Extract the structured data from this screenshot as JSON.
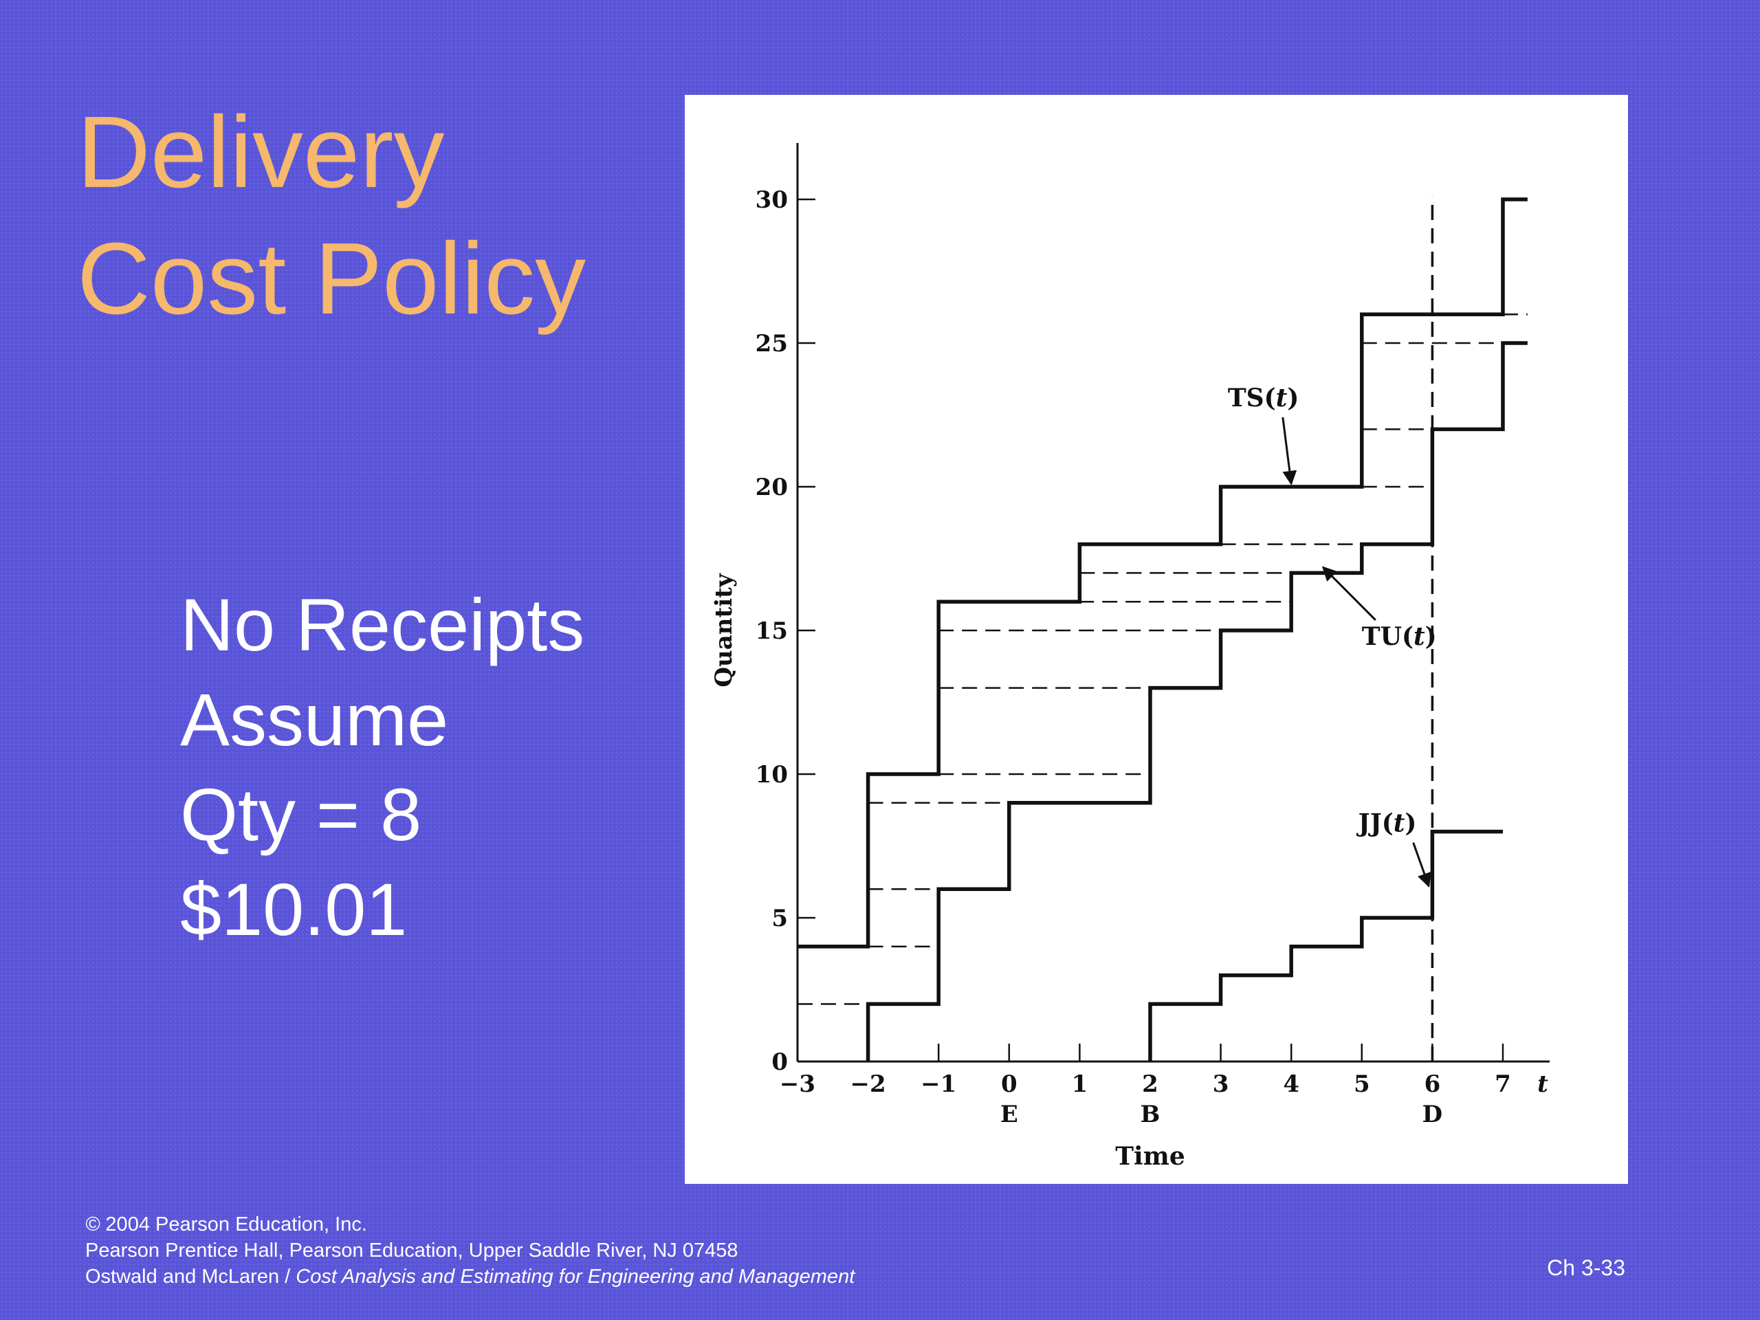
{
  "slide": {
    "title_lines": [
      "Delivery",
      "Cost Policy"
    ],
    "body_lines": [
      "No Receipts",
      "Assume",
      "Qty = 8",
      "$10.01"
    ],
    "footer": {
      "copyright_symbol": "©",
      "copyright": " 2004 Pearson Education, Inc.",
      "publisher": "Pearson Prentice Hall, Pearson Education, Upper Saddle River, NJ 07458",
      "authors": "Ostwald and McLaren / ",
      "book_title": "Cost Analysis and Estimating for Engineering and Management"
    },
    "slide_number": "Ch 3-33"
  },
  "chart_data": {
    "type": "line",
    "xlabel": "Time",
    "ylabel": "Quantity",
    "x_axis_end_label": "t",
    "xlim": [
      -3,
      7
    ],
    "ylim": [
      0,
      30
    ],
    "x_ticks": [
      -3,
      -2,
      -1,
      0,
      1,
      2,
      3,
      4,
      5,
      6,
      7
    ],
    "x_tick_labels": [
      "−3",
      "−2",
      "−1",
      "0",
      "1",
      "2",
      "3",
      "4",
      "5",
      "6",
      "7"
    ],
    "x_event_labels": [
      {
        "x": 0,
        "label": "E"
      },
      {
        "x": 2,
        "label": "B"
      },
      {
        "x": 6,
        "label": "D"
      }
    ],
    "y_ticks": [
      0,
      5,
      10,
      15,
      20,
      25,
      30
    ],
    "y_tick_labels": [
      "0",
      "5",
      "10",
      "15",
      "20",
      "25",
      "30"
    ],
    "series": [
      {
        "name": "TS(t)",
        "kind": "step",
        "x": [
          -3,
          -2,
          -1,
          1,
          3,
          5,
          7,
          7.35
        ],
        "y": [
          4,
          10,
          16,
          18,
          20,
          26,
          30,
          30
        ]
      },
      {
        "name": "TU(t)",
        "kind": "step",
        "x": [
          -2,
          -1,
          0,
          2,
          3,
          4,
          5,
          6,
          7,
          7.35
        ],
        "y": [
          2,
          6,
          9,
          13,
          15,
          17,
          18,
          22,
          25,
          25
        ]
      },
      {
        "name": "JJ(t)",
        "kind": "step",
        "x": [
          2,
          3,
          4,
          5,
          6,
          7
        ],
        "y": [
          2,
          3,
          4,
          5,
          8,
          8
        ]
      }
    ],
    "dashed_segments": [
      {
        "x0": -3,
        "x1": -2,
        "y": 2
      },
      {
        "x0": -2,
        "x1": -1,
        "y": 4
      },
      {
        "x0": -2,
        "x1": -1,
        "y": 6
      },
      {
        "x0": -2,
        "x1": 2,
        "y": 9
      },
      {
        "x0": -1,
        "x1": 2,
        "y": 10
      },
      {
        "x0": -1,
        "x1": 3,
        "y": 13
      },
      {
        "x0": -1,
        "x1": 3,
        "y": 15
      },
      {
        "x0": -1,
        "x1": 4,
        "y": 16
      },
      {
        "x0": 1,
        "x1": 4,
        "y": 17
      },
      {
        "x0": 3,
        "x1": 5,
        "y": 18
      },
      {
        "x0": 5,
        "x1": 6,
        "y": 20
      },
      {
        "x0": 5,
        "x1": 6,
        "y": 22
      },
      {
        "x0": 5,
        "x1": 7,
        "y": 25
      },
      {
        "x0": 7,
        "x1": 7.35,
        "y": 26
      }
    ],
    "vertical_line": {
      "x": 6,
      "style": "dashed"
    },
    "annotations": [
      {
        "label": "TS(",
        "label_italic": "t",
        "label_end": ")",
        "text_x": 3.1,
        "text_y": 22.8,
        "arrow_to": [
          4.0,
          20.1
        ]
      },
      {
        "label": "TU(",
        "label_italic": "t",
        "label_end": ")",
        "text_x": 5.0,
        "text_y": 14.5,
        "arrow_to": [
          4.45,
          17.2
        ]
      },
      {
        "label": "JJ(",
        "label_italic": "t",
        "label_end": ")",
        "text_x": 4.95,
        "text_y": 8.0,
        "arrow_to": [
          5.95,
          6.1
        ]
      }
    ]
  }
}
